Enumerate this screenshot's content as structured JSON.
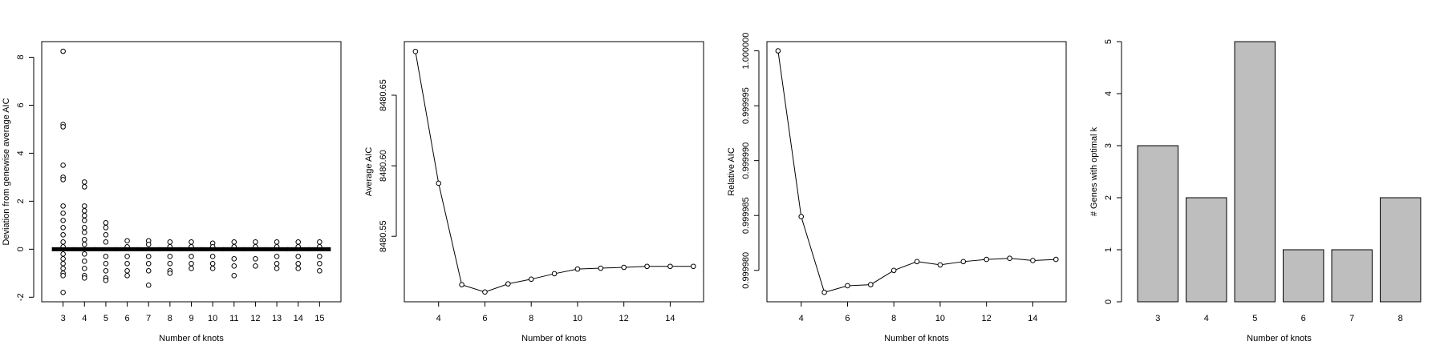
{
  "chart_data": [
    {
      "type": "scatter",
      "xlabel": "Number of knots",
      "ylabel": "Deviation from genewise average AIC",
      "x": [
        3,
        3,
        3,
        3,
        3,
        3,
        3,
        3,
        3,
        3,
        3,
        3,
        3,
        3,
        3,
        3,
        3,
        3,
        3,
        3,
        3,
        4,
        4,
        4,
        4,
        4,
        4,
        4,
        4,
        4,
        4,
        4,
        4,
        4,
        4,
        4,
        4,
        5,
        5,
        5,
        5,
        5,
        5,
        5,
        5,
        5,
        5,
        6,
        6,
        6,
        6,
        6,
        6,
        6,
        7,
        7,
        7,
        7,
        7,
        7,
        7,
        8,
        8,
        8,
        8,
        8,
        8,
        8,
        9,
        9,
        9,
        9,
        9,
        9,
        10,
        10,
        10,
        10,
        10,
        10,
        11,
        11,
        11,
        11,
        11,
        11,
        12,
        12,
        12,
        12,
        12,
        13,
        13,
        13,
        13,
        13,
        13,
        14,
        14,
        14,
        14,
        14,
        14,
        15,
        15,
        15,
        15,
        15,
        15
      ],
      "values": [
        8.25,
        5.2,
        5.1,
        3.5,
        3.0,
        2.9,
        1.8,
        1.5,
        1.2,
        0.9,
        0.6,
        0.3,
        0.1,
        0,
        -0.2,
        -0.4,
        -0.6,
        -0.8,
        -1.0,
        -1.1,
        -1.8,
        2.8,
        2.6,
        1.8,
        1.6,
        1.4,
        1.2,
        0.9,
        0.7,
        0.4,
        0.2,
        0,
        -0.2,
        -0.5,
        -0.8,
        -1.1,
        -1.2,
        1.1,
        0.9,
        0.6,
        0.3,
        0,
        -0.3,
        -0.6,
        -0.9,
        -1.2,
        -1.3,
        0.35,
        0.1,
        0,
        -0.3,
        -0.6,
        -0.9,
        -1.1,
        0.35,
        0.2,
        0,
        -0.3,
        -0.6,
        -0.9,
        -1.5,
        0.3,
        0.1,
        0,
        -0.3,
        -0.6,
        -0.9,
        -1.0,
        0.3,
        0.1,
        0,
        -0.3,
        -0.6,
        -0.8,
        0.25,
        0.1,
        0,
        -0.3,
        -0.6,
        -0.8,
        0.3,
        0.1,
        0,
        -0.4,
        -0.7,
        -1.1,
        0.3,
        0.1,
        0,
        -0.4,
        -0.7,
        0.3,
        0.1,
        0,
        -0.3,
        -0.6,
        -0.8,
        0.3,
        0.1,
        0,
        -0.3,
        -0.6,
        -0.8,
        0.3,
        0.1,
        0,
        -0.3,
        -0.6,
        -0.9
      ],
      "xlim": [
        2,
        16
      ],
      "xticks": [
        3,
        4,
        5,
        6,
        7,
        8,
        9,
        10,
        11,
        12,
        13,
        14,
        15
      ],
      "ylim": [
        -2.19,
        8.65
      ],
      "yticks": [
        -2,
        0,
        2,
        4,
        6,
        8
      ]
    },
    {
      "type": "line",
      "xlabel": "Number of knots",
      "ylabel": "Average AIC",
      "x": [
        3,
        4,
        5,
        6,
        7,
        8,
        9,
        10,
        11,
        12,
        13,
        14,
        15
      ],
      "values": [
        8480.681,
        8480.5876,
        8480.5157,
        8480.5105,
        8480.5163,
        8480.5196,
        8480.5235,
        8480.5268,
        8480.5274,
        8480.528,
        8480.5287,
        8480.5287,
        8480.5287
      ],
      "xlim": [
        2.52,
        15.44
      ],
      "xticks": [
        4,
        6,
        8,
        10,
        12,
        14
      ],
      "ylim": [
        8480.5036,
        8480.688
      ],
      "yticks": [
        8480.55,
        {
          "value": 8480.6,
          "label": "8480.60"
        },
        8480.65
      ]
    },
    {
      "type": "line",
      "xlabel": "Number of knots",
      "ylabel": "Relative AIC",
      "x": [
        3,
        4,
        5,
        6,
        7,
        8,
        9,
        10,
        11,
        12,
        13,
        14,
        15
      ],
      "values": [
        1.0,
        0.9999849,
        0.999978,
        0.9999786,
        0.9999787,
        0.99998,
        0.9999808,
        0.9999805,
        0.9999808,
        0.999981,
        0.9999811,
        0.9999809,
        0.999981
      ],
      "xlim": [
        2.52,
        15.44
      ],
      "xticks": [
        4,
        6,
        8,
        10,
        12,
        14
      ],
      "ylim": [
        0.99997714,
        1.00000084
      ],
      "yticks": [
        {
          "value": 0.99998,
          "label": "0.999980"
        },
        0.999985,
        {
          "value": 0.99999,
          "label": "0.999990"
        },
        0.999995,
        {
          "value": 1.0,
          "label": "1.000000"
        }
      ]
    },
    {
      "type": "bar",
      "xlabel": "Number of knots",
      "ylabel": "# Genes with optimal k",
      "categories": [
        "3",
        "4",
        "5",
        "6",
        "7",
        "8"
      ],
      "values": [
        3,
        2,
        5,
        1,
        1,
        2
      ],
      "color": "#bebebe",
      "ylim": [
        0,
        5
      ],
      "yticks": [
        0,
        1,
        2,
        3,
        4,
        5
      ]
    }
  ]
}
